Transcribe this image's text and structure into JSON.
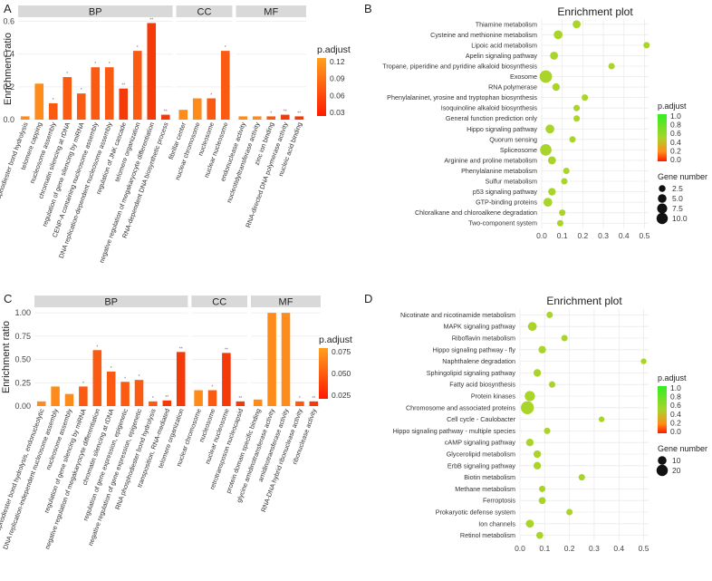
{
  "panels": {
    "A": {
      "letter": "A"
    },
    "B": {
      "letter": "B"
    },
    "C": {
      "letter": "C"
    },
    "D": {
      "letter": "D"
    }
  },
  "colors": {
    "facet_strip": "#d9d9d9",
    "grid": "#ebebeb",
    "dot": "#a9d42a",
    "bar_low_padj": "#f53a0a",
    "bar_high_padj": "#ff8c1a",
    "gradient_top": "#33ee22",
    "gradient_mid": "#a9d42a",
    "gradient_bottom": "#ff1a00"
  },
  "chart_data": [
    {
      "id": "A",
      "type": "bar",
      "ylabel": "Enrichment ratio",
      "ylim": [
        0,
        0.62
      ],
      "yticks": [
        "0.0",
        "0.2",
        "0.4",
        "0.6"
      ],
      "ytick_values": [
        0,
        0.2,
        0.4,
        0.6
      ],
      "legend_title": "p.adjust",
      "legend_ticks": [
        "0.12",
        "0.09",
        "0.06",
        "0.03"
      ],
      "facets": [
        {
          "name": "BP",
          "categories": [
            {
              "label": "nucleic acid phosphodiester bond hydrolysis",
              "value": 0.02,
              "sig": ""
            },
            {
              "label": "telomere capping",
              "value": 0.22,
              "sig": ""
            },
            {
              "label": "nucleosome assembly",
              "value": 0.1,
              "sig": "*"
            },
            {
              "label": "chromatin silencing at rDNA",
              "value": 0.26,
              "sig": "*"
            },
            {
              "label": "regulation of gene silencing by miRNA",
              "value": 0.16,
              "sig": "*"
            },
            {
              "label": "CENP-A containing nucleosome assembly",
              "value": 0.32,
              "sig": "*"
            },
            {
              "label": "DNA replication-dependent nucleosome assembly",
              "value": 0.32,
              "sig": "*"
            },
            {
              "label": "regulation of JNK cascade",
              "value": 0.19,
              "sig": "**"
            },
            {
              "label": "telomere organization",
              "value": 0.42,
              "sig": "*"
            },
            {
              "label": "negative regulation of megakaryocyte differentiation",
              "value": 0.59,
              "sig": "**"
            },
            {
              "label": "RNA-dependent DNA biosynthetic process",
              "value": 0.03,
              "sig": "**"
            }
          ]
        },
        {
          "name": "CC",
          "categories": [
            {
              "label": "fibrillar center",
              "value": 0.06,
              "sig": ""
            },
            {
              "label": "nuclear chromosome",
              "value": 0.13,
              "sig": ""
            },
            {
              "label": "nucleosome",
              "value": 0.13,
              "sig": "*"
            },
            {
              "label": "nuclear nucleosome",
              "value": 0.42,
              "sig": "*"
            }
          ]
        },
        {
          "name": "MF",
          "categories": [
            {
              "label": "endonuclease activity",
              "value": 0.02,
              "sig": ""
            },
            {
              "label": "nucleotidyltransferase activity",
              "value": 0.02,
              "sig": ""
            },
            {
              "label": "zinc ion binding",
              "value": 0.02,
              "sig": "*"
            },
            {
              "label": "RNA-directed DNA polymerase activity",
              "value": 0.03,
              "sig": "**"
            },
            {
              "label": "nucleic acid binding",
              "value": 0.02,
              "sig": "**"
            }
          ]
        }
      ]
    },
    {
      "id": "B",
      "type": "scatter",
      "title": "Enrichment plot",
      "xlim": [
        0,
        0.52
      ],
      "xticks": [
        "0.0",
        "0.1",
        "0.2",
        "0.3",
        "0.4",
        "0.5"
      ],
      "xtick_values": [
        0,
        0.1,
        0.2,
        0.3,
        0.4,
        0.5
      ],
      "legend_color_title": "p.adjust",
      "legend_color_ticks": [
        "1.0",
        "0.8",
        "0.6",
        "0.4",
        "0.2",
        "0.0"
      ],
      "legend_size_title": "Gene number",
      "legend_size_ticks": [
        "2.5",
        "5.0",
        "7.5",
        "10.0"
      ],
      "legend_size_values": [
        2.5,
        5,
        7.5,
        10
      ],
      "points": [
        {
          "term": "Thiamine metabolism",
          "x": 0.17,
          "size": 3
        },
        {
          "term": "Cysteine and methionine metabolism",
          "x": 0.08,
          "size": 4
        },
        {
          "term": "Lipoic acid metabolism",
          "x": 0.51,
          "size": 1.5
        },
        {
          "term": "Apelin signaling pathway",
          "x": 0.06,
          "size": 3
        },
        {
          "term": "Tropane, piperidine and pyridine alkaloid biosynthesis",
          "x": 0.34,
          "size": 1.5
        },
        {
          "term": "Exosome",
          "x": 0.02,
          "size": 10
        },
        {
          "term": "RNA polymerase",
          "x": 0.07,
          "size": 2.5
        },
        {
          "term": "Phenylalaninet, yrosine and tryptophan biosynthesis",
          "x": 0.21,
          "size": 1.5
        },
        {
          "term": "Isoquinoline alkaloid biosynthesis",
          "x": 0.17,
          "size": 1.5
        },
        {
          "term": "General function prediction only",
          "x": 0.17,
          "size": 1.5
        },
        {
          "term": "Hippo signaling pathway",
          "x": 0.04,
          "size": 4
        },
        {
          "term": "Quorum sensing",
          "x": 0.15,
          "size": 1.5
        },
        {
          "term": "Spliceosome",
          "x": 0.02,
          "size": 8
        },
        {
          "term": "Arginine and proline metabolism",
          "x": 0.05,
          "size": 3
        },
        {
          "term": "Phenylalanine metabolism",
          "x": 0.12,
          "size": 1.5
        },
        {
          "term": "Sulfur metabolism",
          "x": 0.11,
          "size": 1.5
        },
        {
          "term": "p53 signaling pathway",
          "x": 0.05,
          "size": 2.5
        },
        {
          "term": "GTP-binding proteins",
          "x": 0.03,
          "size": 4
        },
        {
          "term": "Chloralkane and chloroalkene degradation",
          "x": 0.1,
          "size": 1.5
        },
        {
          "term": "Two-component system",
          "x": 0.09,
          "size": 1.5
        }
      ]
    },
    {
      "id": "C",
      "type": "bar",
      "ylabel": "Enrichment ratio",
      "ylim": [
        0,
        1.05
      ],
      "yticks": [
        "0.00",
        "0.25",
        "0.50",
        "0.75",
        "1.00"
      ],
      "ytick_values": [
        0,
        0.25,
        0.5,
        0.75,
        1.0
      ],
      "legend_title": "p.adjust",
      "legend_ticks": [
        "0.075",
        "0.050",
        "0.025"
      ],
      "facets": [
        {
          "name": "BP",
          "categories": [
            {
              "label": "RNA phosphodiester bond hydrolysis, endonucleolytic",
              "value": 0.05,
              "sig": ""
            },
            {
              "label": "DNA replication-independent nucleosome assembly",
              "value": 0.21,
              "sig": ""
            },
            {
              "label": "nucleosome assembly",
              "value": 0.13,
              "sig": ""
            },
            {
              "label": "regulation of gene silencing by miRNA",
              "value": 0.21,
              "sig": "*"
            },
            {
              "label": "negative regulation of megakaryocyte differentiation",
              "value": 0.6,
              "sig": "*"
            },
            {
              "label": "chromatin silencing at rDNA",
              "value": 0.37,
              "sig": "*"
            },
            {
              "label": "regulation of gene expression, epigenetic",
              "value": 0.26,
              "sig": "*"
            },
            {
              "label": "negative regulation of gene expression, epigenetic",
              "value": 0.28,
              "sig": "*"
            },
            {
              "label": "RNA phosphodiester bond hydrolysis",
              "value": 0.05,
              "sig": "*"
            },
            {
              "label": "transposition, RNA-mediated",
              "value": 0.06,
              "sig": "**"
            },
            {
              "label": "telomere organization",
              "value": 0.58,
              "sig": "**"
            }
          ]
        },
        {
          "name": "CC",
          "categories": [
            {
              "label": "nuclear chromosome",
              "value": 0.17,
              "sig": ""
            },
            {
              "label": "nucleosome",
              "value": 0.17,
              "sig": "*"
            },
            {
              "label": "nuclear nucleosome",
              "value": 0.57,
              "sig": "**"
            },
            {
              "label": "retrotransposon nucleocapsid",
              "value": 0.05,
              "sig": "**"
            }
          ]
        },
        {
          "name": "MF",
          "categories": [
            {
              "label": "protein domain specific binding",
              "value": 0.07,
              "sig": ""
            },
            {
              "label": "glycine amidinotransferase activity",
              "value": 1.0,
              "sig": ""
            },
            {
              "label": "amidinotransferase activity",
              "value": 1.0,
              "sig": ""
            },
            {
              "label": "RNA-DNA hybrid ribonuclease activity",
              "value": 0.05,
              "sig": "*"
            },
            {
              "label": "ribonuclease activity",
              "value": 0.05,
              "sig": "**"
            }
          ]
        }
      ]
    },
    {
      "id": "D",
      "type": "scatter",
      "title": "Enrichment plot",
      "xlim": [
        0,
        0.52
      ],
      "xticks": [
        "0.0",
        "0.1",
        "0.2",
        "0.3",
        "0.4",
        "0.5"
      ],
      "xtick_values": [
        0,
        0.1,
        0.2,
        0.3,
        0.4,
        0.5
      ],
      "legend_color_title": "p.adjust",
      "legend_color_ticks": [
        "1.0",
        "0.8",
        "0.6",
        "0.4",
        "0.2",
        "0.0"
      ],
      "legend_size_title": "Gene number",
      "legend_size_ticks": [
        "10",
        "20"
      ],
      "legend_size_values": [
        10,
        20
      ],
      "points": [
        {
          "term": "Nicotinate and nicotinamide metabolism",
          "x": 0.12,
          "size": 3
        },
        {
          "term": "MAPK signaling pathway",
          "x": 0.05,
          "size": 8
        },
        {
          "term": "Riboflavin metabolism",
          "x": 0.18,
          "size": 3
        },
        {
          "term": "Hippo signaling pathway - fly",
          "x": 0.09,
          "size": 5
        },
        {
          "term": "Naphthalene degradation",
          "x": 0.5,
          "size": 2
        },
        {
          "term": "Sphingolipid signaling pathway",
          "x": 0.07,
          "size": 5
        },
        {
          "term": "Fatty acid biosynthesis",
          "x": 0.13,
          "size": 3
        },
        {
          "term": "Protein kinases",
          "x": 0.04,
          "size": 12
        },
        {
          "term": "Chromosome and associated proteins",
          "x": 0.03,
          "size": 22
        },
        {
          "term": "Cell cycle - Caulobacter",
          "x": 0.33,
          "size": 2
        },
        {
          "term": "Hippo signaling pathway - multiple species",
          "x": 0.11,
          "size": 3
        },
        {
          "term": "cAMP signaling pathway",
          "x": 0.04,
          "size": 5
        },
        {
          "term": "Glycerolipid metabolism",
          "x": 0.07,
          "size": 5
        },
        {
          "term": "ErbB signaling pathway",
          "x": 0.07,
          "size": 5
        },
        {
          "term": "Biotin metabolism",
          "x": 0.25,
          "size": 3
        },
        {
          "term": "Methane metabolism",
          "x": 0.09,
          "size": 3
        },
        {
          "term": "Ferroptosis",
          "x": 0.09,
          "size": 4
        },
        {
          "term": "Prokaryotic defense system",
          "x": 0.2,
          "size": 3
        },
        {
          "term": "Ion channels",
          "x": 0.04,
          "size": 6
        },
        {
          "term": "Retinol metabolism",
          "x": 0.08,
          "size": 4
        }
      ]
    }
  ]
}
